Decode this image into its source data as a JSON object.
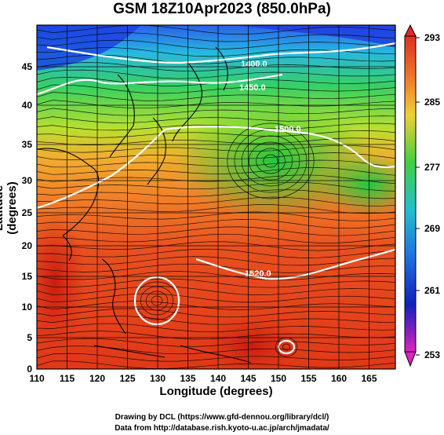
{
  "title": "GSM 18Z10Apr2023 (850.0hPa)",
  "x_axis_label": "Longitude (degrees)",
  "y_axis_label": "Latitude  (degrees)",
  "credits": [
    "Drawing by DCL (https://www.gfd-dennou.org/library/dcl/)",
    "Data from http://database.rish.kyoto-u.ac.jp/arch/jmadata/"
  ],
  "x_ticks": [
    "110",
    "115",
    "120",
    "125",
    "130",
    "135",
    "140",
    "145",
    "150",
    "155",
    "160",
    "165"
  ],
  "y_ticks": [
    "0",
    "5",
    "10",
    "15",
    "20",
    "25",
    "30",
    "35",
    "40",
    "45"
  ],
  "colorbar_ticks": [
    "293",
    "285",
    "277",
    "269",
    "261",
    "253"
  ],
  "contour_labels": [
    "1400.0",
    "1450.0",
    "1500.0",
    "1520.0"
  ],
  "colors": {
    "warm": "#e8401a",
    "hot": "#d42a10",
    "orange": "#f07a20",
    "yellow": "#e8e030",
    "green": "#30d040",
    "cyan": "#20c0d8",
    "blue": "#1050e0",
    "magenta": "#e020c0"
  }
}
